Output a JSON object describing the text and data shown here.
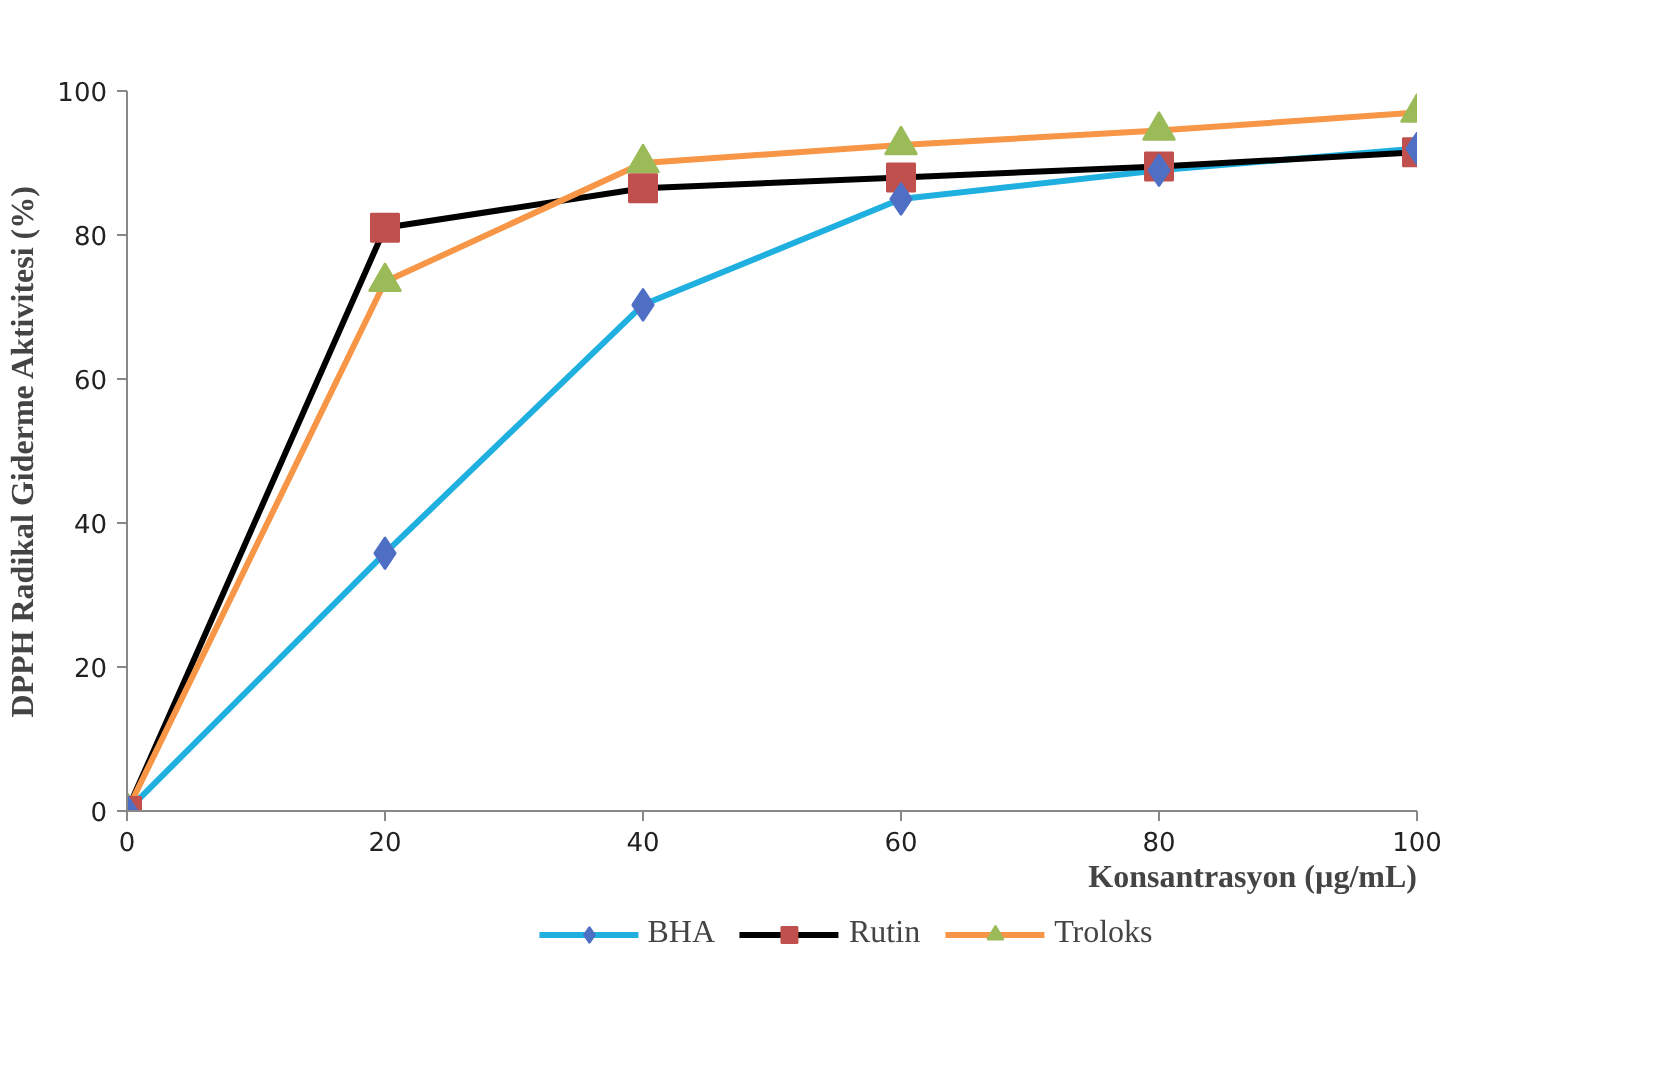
{
  "chart_data": {
    "type": "line",
    "xlabel": "Konsantrasyon (µg/mL)",
    "ylabel": "DPPH Radikal Giderme Aktivitesi (%)",
    "x": [
      0,
      20,
      40,
      60,
      80,
      100
    ],
    "series": [
      {
        "name": "BHA",
        "color": "#1fb0e0",
        "marker": "diamond",
        "colors": [
          "#4f6fc4",
          "#4f6fc4",
          "#4f6fc4",
          "#4f6fc4",
          "#4f6fc4",
          "#4f6fc4"
        ],
        "values": [
          0,
          35.8,
          70.3,
          85,
          89,
          92
        ]
      },
      {
        "name": "Rutin",
        "color": "#000000",
        "marker": "square",
        "colors": [
          "#c0504d",
          "#c0504d",
          "#c0504d",
          "#c0504d",
          "#c0504d",
          "#c0504d"
        ],
        "values": [
          0,
          81,
          86.5,
          88,
          89.5,
          91.5
        ]
      },
      {
        "name": "Troloks",
        "color": "#f79646",
        "marker": "triangle",
        "colors": [
          "#9bbb59",
          "#9bbb59",
          "#9bbb59",
          "#9bbb59",
          "#9bbb59",
          "#9bbb59"
        ],
        "values": [
          0,
          73.5,
          90,
          92.5,
          94.5,
          97
        ]
      }
    ],
    "xlim": [
      0,
      100
    ],
    "ylim": [
      0,
      100
    ],
    "xticks": [
      0,
      20,
      40,
      60,
      80,
      100
    ],
    "yticks": [
      0,
      20,
      40,
      60,
      80,
      100
    ],
    "grid": false,
    "legend": "bottom",
    "line_style": "solid"
  }
}
